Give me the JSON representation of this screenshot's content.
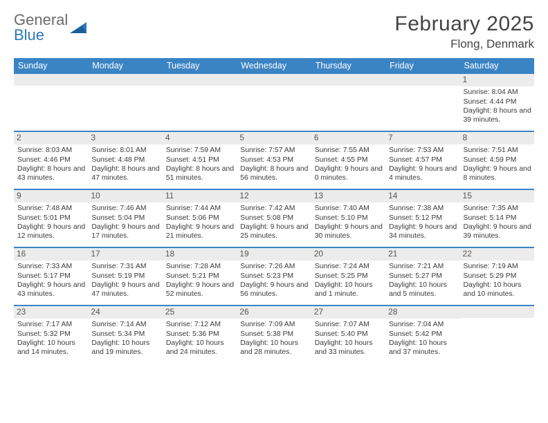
{
  "brand": {
    "line1": "General",
    "line2": "Blue"
  },
  "title": "February 2025",
  "location": "Flong, Denmark",
  "colors": {
    "header_bg": "#3b84c4",
    "header_text": "#ffffff",
    "rule": "#3b84c4",
    "daynum_bg": "#ececec",
    "text": "#3a3a3a",
    "brand_blue": "#2f78bd"
  },
  "dow": [
    "Sunday",
    "Monday",
    "Tuesday",
    "Wednesday",
    "Thursday",
    "Friday",
    "Saturday"
  ],
  "weeks": [
    [
      {
        "n": "",
        "sr": "",
        "ss": "",
        "dl": ""
      },
      {
        "n": "",
        "sr": "",
        "ss": "",
        "dl": ""
      },
      {
        "n": "",
        "sr": "",
        "ss": "",
        "dl": ""
      },
      {
        "n": "",
        "sr": "",
        "ss": "",
        "dl": ""
      },
      {
        "n": "",
        "sr": "",
        "ss": "",
        "dl": ""
      },
      {
        "n": "",
        "sr": "",
        "ss": "",
        "dl": ""
      },
      {
        "n": "1",
        "sr": "Sunrise: 8:04 AM",
        "ss": "Sunset: 4:44 PM",
        "dl": "Daylight: 8 hours and 39 minutes."
      }
    ],
    [
      {
        "n": "2",
        "sr": "Sunrise: 8:03 AM",
        "ss": "Sunset: 4:46 PM",
        "dl": "Daylight: 8 hours and 43 minutes."
      },
      {
        "n": "3",
        "sr": "Sunrise: 8:01 AM",
        "ss": "Sunset: 4:48 PM",
        "dl": "Daylight: 8 hours and 47 minutes."
      },
      {
        "n": "4",
        "sr": "Sunrise: 7:59 AM",
        "ss": "Sunset: 4:51 PM",
        "dl": "Daylight: 8 hours and 51 minutes."
      },
      {
        "n": "5",
        "sr": "Sunrise: 7:57 AM",
        "ss": "Sunset: 4:53 PM",
        "dl": "Daylight: 8 hours and 56 minutes."
      },
      {
        "n": "6",
        "sr": "Sunrise: 7:55 AM",
        "ss": "Sunset: 4:55 PM",
        "dl": "Daylight: 9 hours and 0 minutes."
      },
      {
        "n": "7",
        "sr": "Sunrise: 7:53 AM",
        "ss": "Sunset: 4:57 PM",
        "dl": "Daylight: 9 hours and 4 minutes."
      },
      {
        "n": "8",
        "sr": "Sunrise: 7:51 AM",
        "ss": "Sunset: 4:59 PM",
        "dl": "Daylight: 9 hours and 8 minutes."
      }
    ],
    [
      {
        "n": "9",
        "sr": "Sunrise: 7:48 AM",
        "ss": "Sunset: 5:01 PM",
        "dl": "Daylight: 9 hours and 12 minutes."
      },
      {
        "n": "10",
        "sr": "Sunrise: 7:46 AM",
        "ss": "Sunset: 5:04 PM",
        "dl": "Daylight: 9 hours and 17 minutes."
      },
      {
        "n": "11",
        "sr": "Sunrise: 7:44 AM",
        "ss": "Sunset: 5:06 PM",
        "dl": "Daylight: 9 hours and 21 minutes."
      },
      {
        "n": "12",
        "sr": "Sunrise: 7:42 AM",
        "ss": "Sunset: 5:08 PM",
        "dl": "Daylight: 9 hours and 25 minutes."
      },
      {
        "n": "13",
        "sr": "Sunrise: 7:40 AM",
        "ss": "Sunset: 5:10 PM",
        "dl": "Daylight: 9 hours and 30 minutes."
      },
      {
        "n": "14",
        "sr": "Sunrise: 7:38 AM",
        "ss": "Sunset: 5:12 PM",
        "dl": "Daylight: 9 hours and 34 minutes."
      },
      {
        "n": "15",
        "sr": "Sunrise: 7:35 AM",
        "ss": "Sunset: 5:14 PM",
        "dl": "Daylight: 9 hours and 39 minutes."
      }
    ],
    [
      {
        "n": "16",
        "sr": "Sunrise: 7:33 AM",
        "ss": "Sunset: 5:17 PM",
        "dl": "Daylight: 9 hours and 43 minutes."
      },
      {
        "n": "17",
        "sr": "Sunrise: 7:31 AM",
        "ss": "Sunset: 5:19 PM",
        "dl": "Daylight: 9 hours and 47 minutes."
      },
      {
        "n": "18",
        "sr": "Sunrise: 7:28 AM",
        "ss": "Sunset: 5:21 PM",
        "dl": "Daylight: 9 hours and 52 minutes."
      },
      {
        "n": "19",
        "sr": "Sunrise: 7:26 AM",
        "ss": "Sunset: 5:23 PM",
        "dl": "Daylight: 9 hours and 56 minutes."
      },
      {
        "n": "20",
        "sr": "Sunrise: 7:24 AM",
        "ss": "Sunset: 5:25 PM",
        "dl": "Daylight: 10 hours and 1 minute."
      },
      {
        "n": "21",
        "sr": "Sunrise: 7:21 AM",
        "ss": "Sunset: 5:27 PM",
        "dl": "Daylight: 10 hours and 5 minutes."
      },
      {
        "n": "22",
        "sr": "Sunrise: 7:19 AM",
        "ss": "Sunset: 5:29 PM",
        "dl": "Daylight: 10 hours and 10 minutes."
      }
    ],
    [
      {
        "n": "23",
        "sr": "Sunrise: 7:17 AM",
        "ss": "Sunset: 5:32 PM",
        "dl": "Daylight: 10 hours and 14 minutes."
      },
      {
        "n": "24",
        "sr": "Sunrise: 7:14 AM",
        "ss": "Sunset: 5:34 PM",
        "dl": "Daylight: 10 hours and 19 minutes."
      },
      {
        "n": "25",
        "sr": "Sunrise: 7:12 AM",
        "ss": "Sunset: 5:36 PM",
        "dl": "Daylight: 10 hours and 24 minutes."
      },
      {
        "n": "26",
        "sr": "Sunrise: 7:09 AM",
        "ss": "Sunset: 5:38 PM",
        "dl": "Daylight: 10 hours and 28 minutes."
      },
      {
        "n": "27",
        "sr": "Sunrise: 7:07 AM",
        "ss": "Sunset: 5:40 PM",
        "dl": "Daylight: 10 hours and 33 minutes."
      },
      {
        "n": "28",
        "sr": "Sunrise: 7:04 AM",
        "ss": "Sunset: 5:42 PM",
        "dl": "Daylight: 10 hours and 37 minutes."
      },
      {
        "n": "",
        "sr": "",
        "ss": "",
        "dl": ""
      }
    ]
  ]
}
